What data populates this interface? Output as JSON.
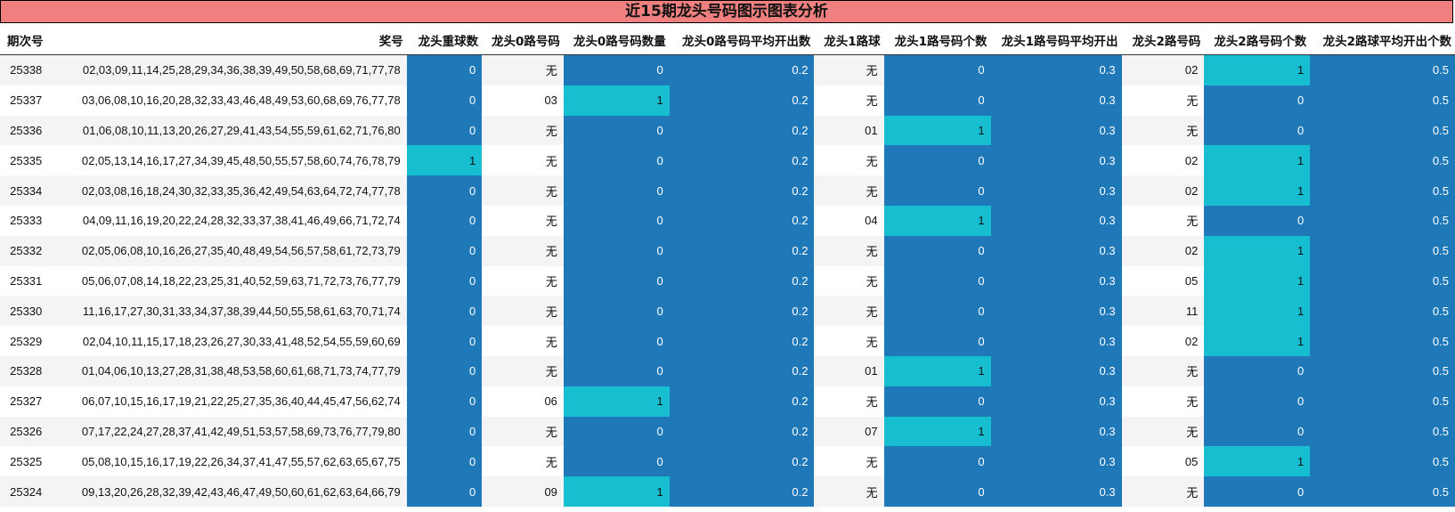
{
  "title": "近15期龙头号码图示图表分析",
  "colors": {
    "title_bg": "#f08080",
    "blue": "#1f78b8",
    "cyan": "#17becf"
  },
  "chart_data": {
    "type": "table",
    "columns": [
      "期次号",
      "奖号",
      "龙头重球数",
      "龙头0路号码",
      "龙头0路号码数量",
      "龙头0路号码平均开出数",
      "龙头1路球",
      "龙头1路号码个数",
      "龙头1路号码平均开出",
      "龙头2路号码",
      "龙头2路号码个数",
      "龙头2路球平均开出个数"
    ],
    "rows": [
      [
        "25338",
        "02,03,09,11,14,25,28,29,34,36,38,39,49,50,58,68,69,71,77,78",
        "0",
        "无",
        "0",
        "0.2",
        "无",
        "0",
        "0.3",
        "02",
        "1",
        "0.5"
      ],
      [
        "25337",
        "03,06,08,10,16,20,28,32,33,43,46,48,49,53,60,68,69,76,77,78",
        "0",
        "03",
        "1",
        "0.2",
        "无",
        "0",
        "0.3",
        "无",
        "0",
        "0.5"
      ],
      [
        "25336",
        "01,06,08,10,11,13,20,26,27,29,41,43,54,55,59,61,62,71,76,80",
        "0",
        "无",
        "0",
        "0.2",
        "01",
        "1",
        "0.3",
        "无",
        "0",
        "0.5"
      ],
      [
        "25335",
        "02,05,13,14,16,17,27,34,39,45,48,50,55,57,58,60,74,76,78,79",
        "1",
        "无",
        "0",
        "0.2",
        "无",
        "0",
        "0.3",
        "02",
        "1",
        "0.5"
      ],
      [
        "25334",
        "02,03,08,16,18,24,30,32,33,35,36,42,49,54,63,64,72,74,77,78",
        "0",
        "无",
        "0",
        "0.2",
        "无",
        "0",
        "0.3",
        "02",
        "1",
        "0.5"
      ],
      [
        "25333",
        "04,09,11,16,19,20,22,24,28,32,33,37,38,41,46,49,66,71,72,74",
        "0",
        "无",
        "0",
        "0.2",
        "04",
        "1",
        "0.3",
        "无",
        "0",
        "0.5"
      ],
      [
        "25332",
        "02,05,06,08,10,16,26,27,35,40,48,49,54,56,57,58,61,72,73,79",
        "0",
        "无",
        "0",
        "0.2",
        "无",
        "0",
        "0.3",
        "02",
        "1",
        "0.5"
      ],
      [
        "25331",
        "05,06,07,08,14,18,22,23,25,31,40,52,59,63,71,72,73,76,77,79",
        "0",
        "无",
        "0",
        "0.2",
        "无",
        "0",
        "0.3",
        "05",
        "1",
        "0.5"
      ],
      [
        "25330",
        "11,16,17,27,30,31,33,34,37,38,39,44,50,55,58,61,63,70,71,74",
        "0",
        "无",
        "0",
        "0.2",
        "无",
        "0",
        "0.3",
        "11",
        "1",
        "0.5"
      ],
      [
        "25329",
        "02,04,10,11,15,17,18,23,26,27,30,33,41,48,52,54,55,59,60,69",
        "0",
        "无",
        "0",
        "0.2",
        "无",
        "0",
        "0.3",
        "02",
        "1",
        "0.5"
      ],
      [
        "25328",
        "01,04,06,10,13,27,28,31,38,48,53,58,60,61,68,71,73,74,77,79",
        "0",
        "无",
        "0",
        "0.2",
        "01",
        "1",
        "0.3",
        "无",
        "0",
        "0.5"
      ],
      [
        "25327",
        "06,07,10,15,16,17,19,21,22,25,27,35,36,40,44,45,47,56,62,74",
        "0",
        "06",
        "1",
        "0.2",
        "无",
        "0",
        "0.3",
        "无",
        "0",
        "0.5"
      ],
      [
        "25326",
        "07,17,22,24,27,28,37,41,42,49,51,53,57,58,69,73,76,77,79,80",
        "0",
        "无",
        "0",
        "0.2",
        "07",
        "1",
        "0.3",
        "无",
        "0",
        "0.5"
      ],
      [
        "25325",
        "05,08,10,15,16,17,19,22,26,34,37,41,47,55,57,62,63,65,67,75",
        "0",
        "无",
        "0",
        "0.2",
        "无",
        "0",
        "0.3",
        "05",
        "1",
        "0.5"
      ],
      [
        "25324",
        "09,13,20,26,28,32,39,42,43,46,47,49,50,60,61,62,63,64,66,79",
        "0",
        "09",
        "1",
        "0.2",
        "无",
        "0",
        "0.3",
        "无",
        "0",
        "0.5"
      ]
    ]
  }
}
